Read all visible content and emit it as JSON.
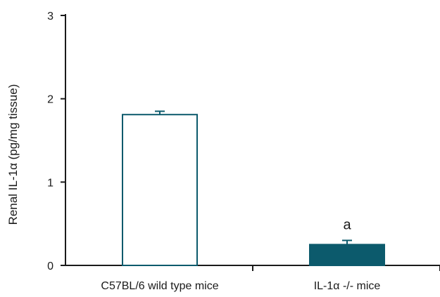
{
  "chart_data": {
    "type": "bar",
    "categories": [
      "C57BL/6 wild type mice",
      "IL-1α -/- mice"
    ],
    "values": [
      1.81,
      0.25
    ],
    "errors": [
      0.04,
      0.05
    ],
    "annotations": [
      "",
      "a"
    ],
    "ylabel": "Renal IL-1α (pg/mg tissue)",
    "xlabel": "",
    "ylim": [
      0,
      3
    ],
    "yticks": [
      "0",
      "1",
      "2",
      "3"
    ],
    "grid": false,
    "colors": {
      "bar_fills": [
        "#ffffff",
        "#0c5a6c"
      ],
      "bar_stroke": "#0c5a6c",
      "error_bar": "#0c5a6c",
      "axis": "#1a1a1a"
    }
  }
}
